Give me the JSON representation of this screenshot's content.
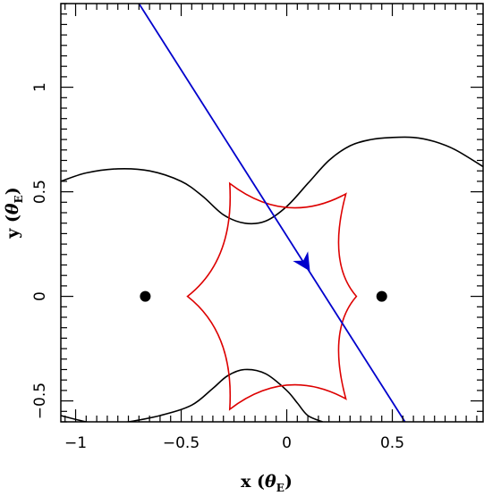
{
  "chart_data": {
    "type": "line",
    "xlabel": {
      "main": "x (",
      "symbol": "θ",
      "subscript": "E",
      "close": ")"
    },
    "ylabel": {
      "main": "y (",
      "symbol": "θ",
      "subscript": "E",
      "close": ")"
    },
    "xlim": [
      -1.07,
      0.93
    ],
    "ylim": [
      -0.6,
      1.4
    ],
    "x_ticks": [
      -1,
      -0.5,
      0,
      0.5
    ],
    "x_tick_labels": [
      "−1",
      "−0.5",
      "0",
      "0.5"
    ],
    "y_ticks": [
      -0.5,
      0,
      0.5,
      1
    ],
    "y_tick_labels": [
      "−0.5",
      "0",
      "0.5",
      "1"
    ],
    "grid": false,
    "lenses": [
      {
        "x": -0.67,
        "y": 0.0
      },
      {
        "x": 0.45,
        "y": 0.0
      }
    ],
    "source_trajectory": {
      "color": "#0000cc",
      "start": [
        -0.7,
        1.4
      ],
      "end": [
        0.56,
        -0.6
      ],
      "arrow_at": [
        0.11,
        0.12
      ]
    },
    "caustic": {
      "color": "#dd0000",
      "cusps": [
        [
          -0.47,
          0.0
        ],
        [
          -0.27,
          0.54
        ],
        [
          0.28,
          0.49
        ],
        [
          0.33,
          0.0
        ],
        [
          0.28,
          -0.49
        ],
        [
          -0.27,
          -0.54
        ]
      ]
    },
    "track_upper": {
      "color": "#000000",
      "x": [
        -1.07,
        -0.95,
        -0.8,
        -0.65,
        -0.5,
        -0.4,
        -0.3,
        -0.2,
        -0.1,
        0.0,
        0.1,
        0.2,
        0.3,
        0.4,
        0.5,
        0.6,
        0.7,
        0.8,
        0.93
      ],
      "y": [
        0.55,
        0.59,
        0.61,
        0.6,
        0.55,
        0.48,
        0.39,
        0.35,
        0.36,
        0.43,
        0.54,
        0.65,
        0.72,
        0.75,
        0.76,
        0.76,
        0.74,
        0.7,
        0.62
      ]
    },
    "track_lower": {
      "color": "#000000",
      "x": [
        -1.07,
        -0.95,
        -0.85,
        -0.75,
        -0.6,
        -0.45,
        -0.35,
        -0.28,
        -0.2,
        -0.1,
        0.0,
        0.05,
        0.1,
        0.17
      ],
      "y": [
        -0.57,
        -0.6,
        -0.61,
        -0.6,
        -0.57,
        -0.52,
        -0.44,
        -0.38,
        -0.35,
        -0.37,
        -0.45,
        -0.51,
        -0.57,
        -0.6
      ]
    }
  }
}
